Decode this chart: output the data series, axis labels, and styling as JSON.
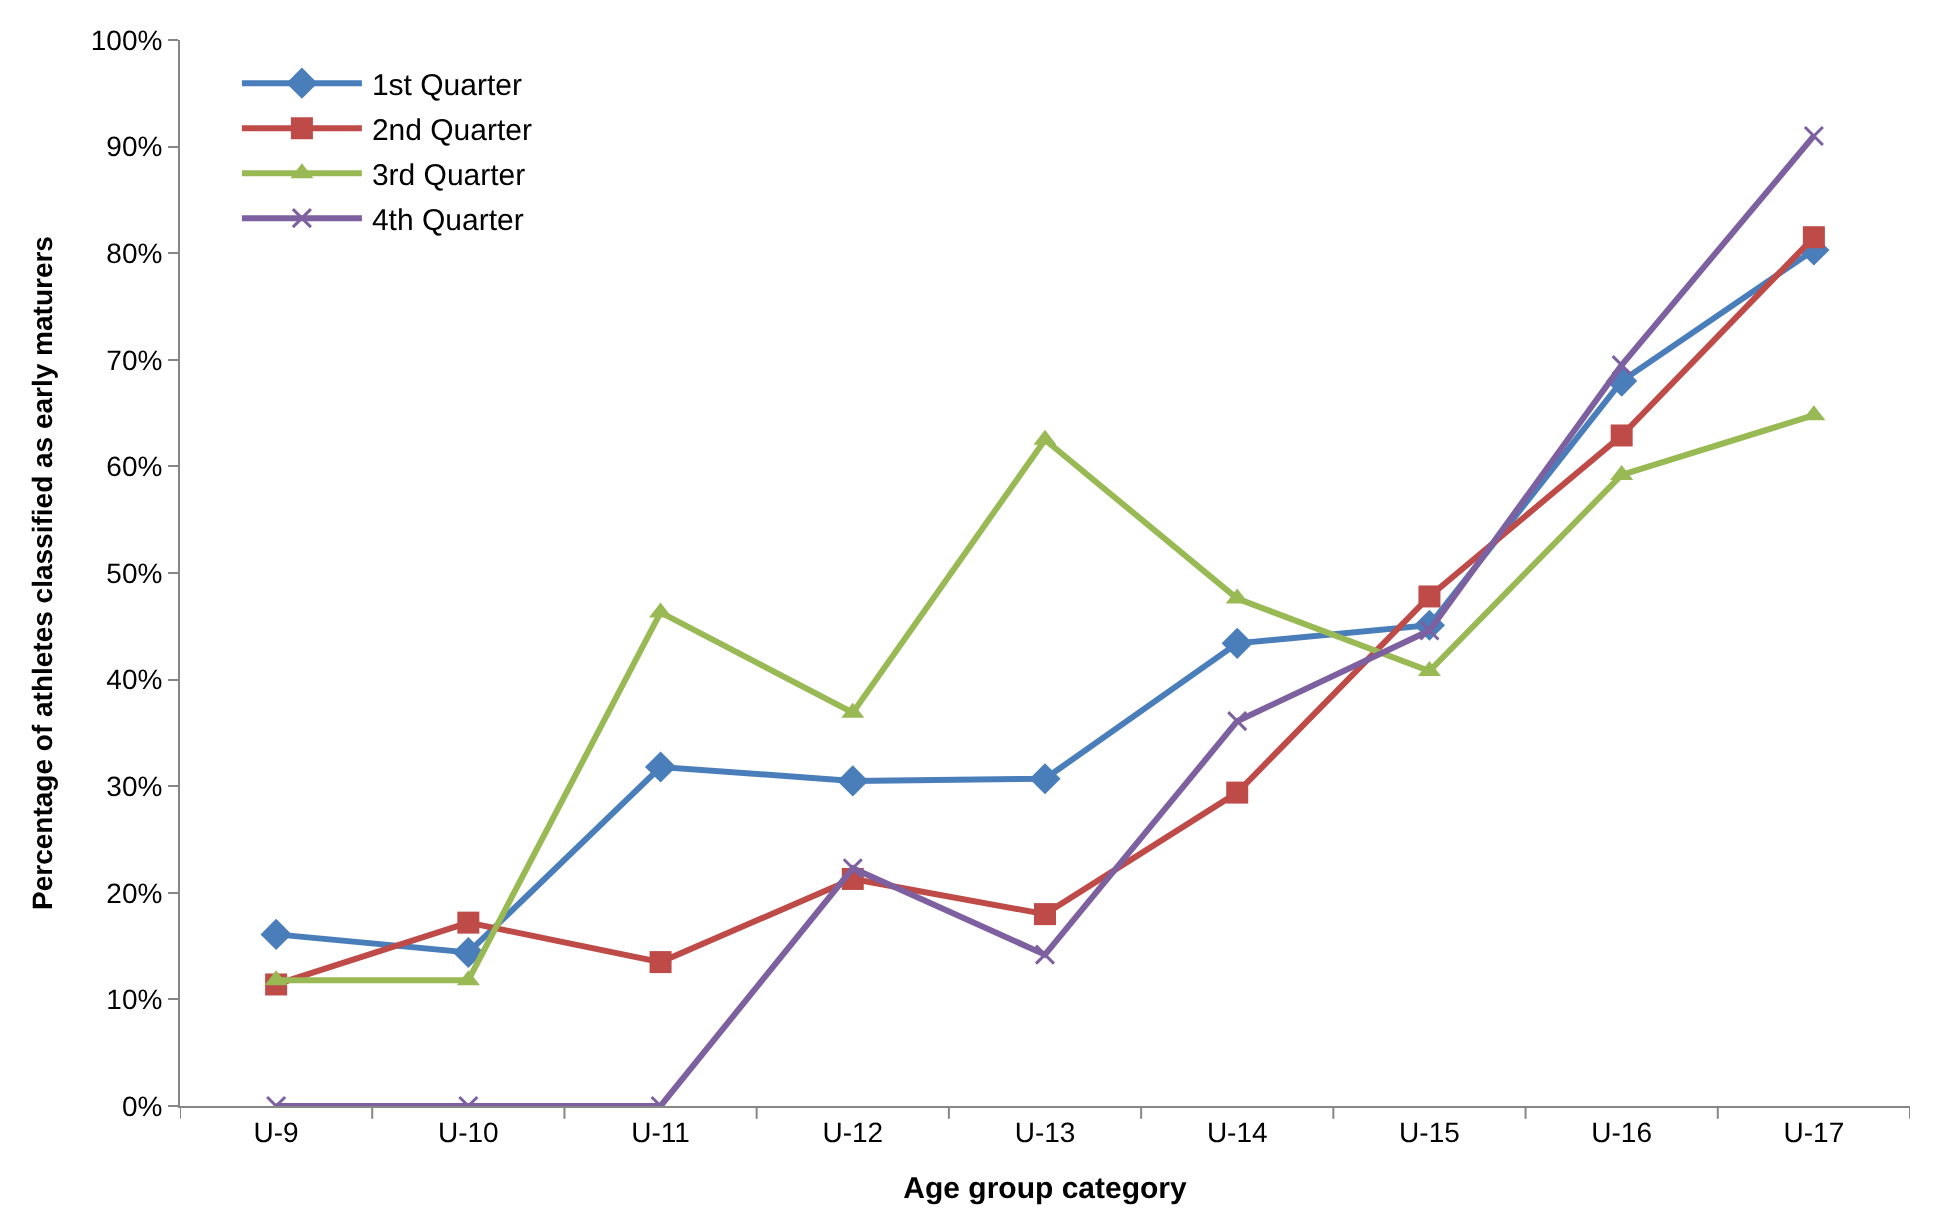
{
  "chart_data": {
    "type": "line",
    "xlabel": "Age group category",
    "ylabel": "Percentage of athletes classified as early maturers",
    "categories": [
      "U-9",
      "U-10",
      "U-11",
      "U-12",
      "U-13",
      "U-14",
      "U-15",
      "U-16",
      "U-17"
    ],
    "series": [
      {
        "name": "1st Quarter",
        "color": "#4a7ebb",
        "marker": "diamond",
        "values": [
          16.1,
          14.4,
          31.8,
          30.5,
          30.7,
          43.4,
          45.1,
          68.0,
          80.3
        ]
      },
      {
        "name": "2nd Quarter",
        "color": "#be4b48",
        "marker": "square",
        "values": [
          11.4,
          17.2,
          13.5,
          21.3,
          18.0,
          29.4,
          47.8,
          62.9,
          81.5
        ]
      },
      {
        "name": "3rd Quarter",
        "color": "#98b954",
        "marker": "triangle",
        "values": [
          11.8,
          11.8,
          46.3,
          36.9,
          62.5,
          47.6,
          40.8,
          59.2,
          64.8
        ]
      },
      {
        "name": "4th Quarter",
        "color": "#7d60a0",
        "marker": "cross",
        "values": [
          0,
          0,
          0,
          22.3,
          14.2,
          36.1,
          44.6,
          69.5,
          91.0
        ]
      }
    ],
    "ylim": [
      0,
      100
    ],
    "yticks": [
      {
        "value": 0,
        "label": "0%"
      },
      {
        "value": 10,
        "label": "10%"
      },
      {
        "value": 20,
        "label": "20%"
      },
      {
        "value": 30,
        "label": "30%"
      },
      {
        "value": 40,
        "label": "40%"
      },
      {
        "value": 50,
        "label": "50%"
      },
      {
        "value": 60,
        "label": "60%"
      },
      {
        "value": 70,
        "label": "70%"
      },
      {
        "value": 80,
        "label": "80%"
      },
      {
        "value": 90,
        "label": "90%"
      },
      {
        "value": 100,
        "label": "100%"
      }
    ],
    "legend": "top left",
    "line_style": "solid"
  }
}
